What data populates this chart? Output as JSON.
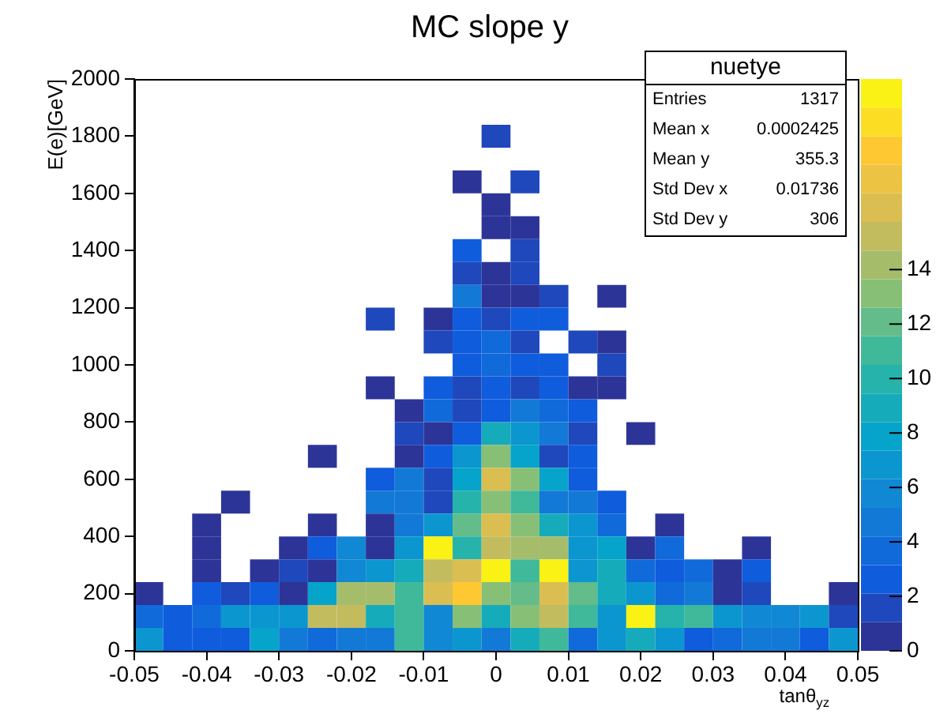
{
  "chart_data": {
    "type": "scatter",
    "marker": "square",
    "title": "MC slope y",
    "xlabel": "tanθ$_{yz}$",
    "ylabel": "E(e)[GeV]",
    "xlim": [
      -0.05,
      0.05
    ],
    "xticks": [
      -0.05,
      -0.04,
      -0.03,
      -0.02,
      -0.01,
      0,
      0.01,
      0.02,
      0.03,
      0.04,
      0.05
    ],
    "ylim": [
      0,
      2000
    ],
    "yticks": [
      0,
      200,
      400,
      600,
      800,
      1000,
      1200,
      1400,
      1600,
      1800,
      2000
    ],
    "clim": [
      0,
      21
    ],
    "cticks": [
      0,
      2,
      4,
      6,
      8,
      10,
      12,
      14
    ],
    "annotations": [
      "nuetye",
      "Entries 1317",
      "Mean x 0.0002425",
      "Mean y 355.3",
      "Std Dev x 0.01736",
      "Std Dev y 306"
    ],
    "x": [
      0,
      -0.004,
      0.004,
      0,
      0,
      0.004,
      -0.004,
      0.004,
      -0.004,
      0,
      0.004,
      -0.004,
      0,
      0.004,
      0.008,
      0.016,
      -0.016,
      -0.008,
      -0.004,
      0,
      0.004,
      0.008,
      -0.008,
      -0.004,
      0,
      0.004,
      0.012,
      0.016,
      -0.004,
      0,
      0.004,
      0.008,
      0.016,
      -0.016,
      -0.008,
      -0.004,
      0,
      0.004,
      0.008,
      0.012,
      0.016,
      -0.012,
      -0.008,
      -0.004,
      0,
      0.004,
      0.008,
      0.012,
      -0.012,
      -0.008,
      -0.004,
      0,
      0.004,
      0.008,
      0.012,
      0.02,
      -0.024,
      -0.012,
      -0.008,
      -0.004,
      0,
      0.004,
      0.008,
      0.012,
      -0.016,
      -0.012,
      -0.008,
      -0.004,
      0,
      0.004,
      0.008,
      0.012,
      -0.036,
      -0.016,
      -0.012,
      -0.008,
      -0.004,
      0,
      0.004,
      0.008,
      0.012,
      0.016,
      -0.04,
      -0.024,
      -0.016,
      -0.012,
      -0.008,
      -0.004,
      0,
      0.004,
      0.008,
      0.012,
      0.016,
      0.024,
      -0.04,
      -0.028,
      -0.024,
      -0.02,
      -0.016,
      -0.012,
      -0.008,
      -0.004,
      0,
      0.004,
      0.008,
      0.012,
      0.016,
      0.02,
      0.024,
      0.036,
      -0.04,
      -0.032,
      -0.028,
      -0.024,
      -0.02,
      -0.016,
      -0.012,
      -0.008,
      -0.004,
      0,
      0.004,
      0.008,
      0.012,
      0.016,
      0.02,
      0.024,
      0.028,
      0.032,
      0.036,
      -0.048,
      -0.04,
      -0.036,
      -0.032,
      -0.028,
      -0.024,
      -0.02,
      -0.016,
      -0.012,
      -0.008,
      -0.004,
      0,
      0.004,
      0.008,
      0.012,
      0.016,
      0.02,
      0.024,
      0.028,
      0.032,
      0.036,
      0.048,
      -0.048,
      -0.044,
      -0.04,
      -0.036,
      -0.032,
      -0.028,
      -0.024,
      -0.02,
      -0.016,
      -0.012,
      -0.008,
      -0.004,
      0,
      0.004,
      0.008,
      0.012,
      0.016,
      0.02,
      0.024,
      0.028,
      0.032,
      0.036,
      0.04,
      0.044,
      0.048,
      -0.048,
      -0.044,
      -0.04,
      -0.036,
      -0.032,
      -0.028,
      -0.024,
      -0.02,
      -0.016,
      -0.012,
      -0.008,
      -0.004,
      0,
      0.004,
      0.008,
      0.012,
      0.016,
      0.02,
      0.024,
      0.028,
      0.032,
      0.036,
      0.04,
      0.044,
      0.048
    ],
    "values": [
      1800,
      1640,
      1640,
      1560,
      1480,
      1480,
      1400,
      1400,
      1320,
      1320,
      1320,
      1240,
      1240,
      1240,
      1240,
      1240,
      1160,
      1160,
      1160,
      1160,
      1160,
      1160,
      1080,
      1080,
      1080,
      1080,
      1080,
      1080,
      1000,
      1000,
      1000,
      1000,
      1000,
      920,
      920,
      920,
      920,
      920,
      920,
      920,
      920,
      840,
      840,
      840,
      840,
      840,
      840,
      840,
      760,
      760,
      760,
      760,
      760,
      760,
      760,
      760,
      680,
      680,
      680,
      680,
      680,
      680,
      680,
      680,
      600,
      600,
      600,
      600,
      600,
      600,
      600,
      600,
      520,
      520,
      520,
      520,
      520,
      520,
      520,
      520,
      520,
      520,
      440,
      440,
      440,
      440,
      440,
      440,
      440,
      440,
      440,
      440,
      440,
      440,
      360,
      360,
      360,
      360,
      360,
      360,
      360,
      360,
      360,
      360,
      360,
      360,
      360,
      360,
      360,
      360,
      280,
      280,
      280,
      280,
      280,
      280,
      280,
      280,
      280,
      280,
      280,
      280,
      280,
      280,
      280,
      280,
      280,
      280,
      280,
      200,
      200,
      200,
      200,
      200,
      200,
      200,
      200,
      200,
      200,
      200,
      200,
      200,
      200,
      200,
      200,
      200,
      200,
      200,
      200,
      200,
      200,
      120,
      120,
      120,
      120,
      120,
      120,
      120,
      120,
      120,
      120,
      120,
      120,
      120,
      120,
      120,
      120,
      120,
      120,
      120,
      120,
      120,
      120,
      120,
      120,
      120,
      40,
      40,
      40,
      40,
      40,
      40,
      40,
      40,
      40,
      40,
      40,
      40,
      40,
      40,
      40,
      40,
      40,
      40,
      40,
      40,
      40,
      40,
      40,
      40,
      40
    ],
    "cvalues": [
      2,
      1,
      2,
      1,
      1,
      1,
      3,
      2,
      2,
      1,
      2,
      5,
      1,
      1,
      2,
      1,
      2,
      1,
      3,
      2,
      3,
      3,
      2,
      3,
      4,
      2,
      2,
      1,
      3,
      4,
      3,
      3,
      2,
      1,
      3,
      2,
      3,
      2,
      3,
      1,
      1,
      1,
      4,
      2,
      3,
      5,
      4,
      3,
      2,
      1,
      3,
      9,
      7,
      5,
      2,
      1,
      1,
      1,
      3,
      7,
      13,
      8,
      2,
      3,
      3,
      5,
      2,
      8,
      16,
      13,
      8,
      3,
      1,
      5,
      5,
      2,
      10,
      13,
      11,
      5,
      5,
      3,
      1,
      1,
      1,
      5,
      7,
      12,
      16,
      13,
      9,
      7,
      4,
      1,
      1,
      1,
      3,
      6,
      1,
      7,
      20,
      10,
      15,
      14,
      14,
      7,
      8,
      1,
      4,
      1,
      1,
      1,
      2,
      1,
      6,
      7,
      9,
      15,
      16,
      20,
      11,
      20,
      7,
      9,
      4,
      3,
      4,
      1,
      3,
      1,
      3,
      2,
      3,
      1,
      8,
      14,
      14,
      11,
      16,
      18,
      13,
      12,
      16,
      12,
      9,
      7,
      4,
      5,
      1,
      2,
      1,
      4,
      3,
      4,
      7,
      7,
      7,
      15,
      15,
      9,
      11,
      6,
      13,
      9,
      13,
      15,
      11,
      7,
      20,
      10,
      11,
      7,
      6,
      6,
      7,
      2,
      7,
      3,
      3,
      3,
      8,
      5,
      4,
      5,
      5,
      11,
      6,
      7,
      5,
      9,
      11,
      4,
      7,
      9,
      7,
      3,
      4,
      5,
      5,
      3,
      7
    ]
  }
}
